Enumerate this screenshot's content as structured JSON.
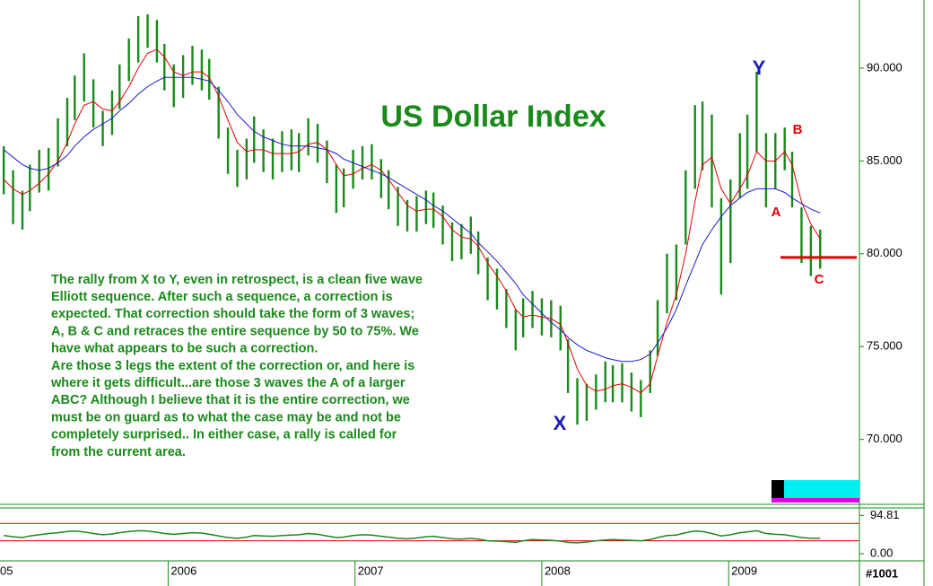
{
  "chart_data": {
    "type": "hilo",
    "title": "US Dollar Index",
    "color": "#1a8a1a",
    "x": [
      2005.12,
      2005.17,
      2005.22,
      2005.26,
      2005.31,
      2005.36,
      2005.41,
      2005.46,
      2005.5,
      2005.55,
      2005.6,
      2005.65,
      2005.7,
      2005.74,
      2005.79,
      2005.84,
      2005.89,
      2005.94,
      2005.98,
      2006.03,
      2006.08,
      2006.13,
      2006.18,
      2006.22,
      2006.27,
      2006.32,
      2006.37,
      2006.42,
      2006.46,
      2006.51,
      2006.56,
      2006.61,
      2006.66,
      2006.7,
      2006.75,
      2006.8,
      2006.85,
      2006.9,
      2006.94,
      2006.99,
      2007.04,
      2007.09,
      2007.14,
      2007.18,
      2007.23,
      2007.28,
      2007.33,
      2007.38,
      2007.42,
      2007.47,
      2007.52,
      2007.57,
      2007.62,
      2007.66,
      2007.71,
      2007.76,
      2007.81,
      2007.86,
      2007.9,
      2007.95,
      2008.0,
      2008.05,
      2008.1,
      2008.14,
      2008.19,
      2008.24,
      2008.29,
      2008.34,
      2008.38,
      2008.43,
      2008.48,
      2008.53,
      2008.58,
      2008.62,
      2008.67,
      2008.72,
      2008.77,
      2008.82,
      2008.86,
      2008.91,
      2008.96,
      2009.01,
      2009.06,
      2009.1,
      2009.15,
      2009.2,
      2009.25,
      2009.3,
      2009.34,
      2009.39,
      2009.44,
      2009.49
    ],
    "high": [
      85.8,
      84.5,
      83.4,
      84.8,
      85.6,
      85.7,
      87.3,
      88.4,
      89.6,
      90.8,
      89.4,
      87.7,
      88.8,
      90.2,
      91.6,
      92.8,
      92.9,
      92.6,
      91.3,
      90.2,
      90.7,
      91.2,
      91,
      90.5,
      89,
      86.8,
      85.6,
      86.2,
      87.4,
      86.7,
      86.2,
      86.6,
      86.7,
      86.5,
      87.3,
      87,
      86.1,
      84.8,
      84.6,
      85.6,
      85.8,
      85.9,
      85.1,
      84.5,
      83.6,
      82.9,
      83.1,
      83.4,
      83.3,
      82.6,
      81.7,
      81.6,
      82,
      81.2,
      79.8,
      79.2,
      78.1,
      77,
      77.6,
      78,
      77.6,
      77.5,
      77.2,
      75.4,
      73.3,
      73,
      73.5,
      74.2,
      74,
      74.1,
      73.6,
      73.2,
      74.8,
      77.5,
      80,
      80.5,
      84.5,
      88,
      88.2,
      87.5,
      83,
      84,
      86.5,
      87.5,
      89.8,
      86.5,
      86.5,
      86.8,
      85.5,
      82.5,
      81.5,
      81.3
    ],
    "low": [
      83.2,
      81.6,
      81.3,
      82.3,
      83.3,
      83.4,
      84.7,
      85.8,
      87.2,
      88.2,
      86.8,
      85.8,
      86.4,
      87.8,
      89.3,
      90.3,
      91.1,
      90.3,
      88.8,
      87.9,
      88.4,
      89.1,
      88.8,
      88.3,
      86.2,
      84.3,
      83.6,
      84,
      84.9,
      84.4,
      84,
      84.4,
      84.5,
      84.4,
      85.3,
      84.9,
      83.8,
      82.2,
      82.5,
      83.5,
      84,
      84,
      83,
      82.4,
      81.5,
      81.2,
      81.2,
      81.6,
      81.4,
      80.5,
      79.6,
      79.7,
      80,
      78.9,
      77.5,
      77,
      76,
      74.8,
      75.5,
      76,
      75.6,
      75.5,
      74.8,
      72.5,
      70.8,
      71,
      71.6,
      72,
      72,
      72,
      71.5,
      71.2,
      72.5,
      74.5,
      76.8,
      77.5,
      80.5,
      83.5,
      84.5,
      82.5,
      77.8,
      79.5,
      83,
      83.5,
      85.5,
      82.5,
      83.5,
      84.5,
      82.5,
      79.5,
      78.8,
      79.2
    ],
    "lines": [
      {
        "color": "#e00000",
        "values": [
          84,
          83.5,
          83.2,
          83.4,
          83.8,
          84.3,
          85,
          86,
          87,
          88,
          88.2,
          87.8,
          87.7,
          88.2,
          89,
          90,
          90.8,
          91,
          90.6,
          89.8,
          89.6,
          89.8,
          89.8,
          89.5,
          88.5,
          87.2,
          86,
          85.5,
          85.6,
          85.6,
          85.4,
          85.4,
          85.4,
          85.5,
          85.9,
          86,
          85.6,
          84.8,
          84.2,
          84.3,
          84.6,
          84.8,
          84.5,
          84,
          83.3,
          82.6,
          82.3,
          82.4,
          82.4,
          82,
          81.3,
          80.9,
          80.8,
          80.4,
          79.5,
          78.8,
          78,
          77,
          76.6,
          76.7,
          76.6,
          76.5,
          76.2,
          75.2,
          73.8,
          72.9,
          72.6,
          72.7,
          72.9,
          73,
          72.8,
          72.5,
          73,
          74.5,
          76.3,
          77.8,
          80,
          82.8,
          84.8,
          85.2,
          83.5,
          82.7,
          83.5,
          84.2,
          85.5,
          85,
          85,
          85.5,
          84.8,
          82.8,
          81.6,
          80.8
        ]
      },
      {
        "color": "#1c1cc8",
        "values": [
          85.6,
          85.2,
          84.8,
          84.6,
          84.5,
          84.6,
          84.9,
          85.3,
          85.8,
          86.3,
          86.7,
          87,
          87.3,
          87.7,
          88.1,
          88.6,
          89,
          89.3,
          89.5,
          89.5,
          89.5,
          89.5,
          89.4,
          89.3,
          88.8,
          88.2,
          87.5,
          87,
          86.6,
          86.3,
          86.1,
          85.9,
          85.8,
          85.8,
          85.8,
          85.7,
          85.6,
          85.4,
          85.1,
          84.9,
          84.7,
          84.5,
          84.3,
          84.1,
          83.8,
          83.5,
          83.2,
          82.9,
          82.6,
          82.3,
          81.9,
          81.5,
          81.1,
          80.6,
          80.1,
          79.6,
          79,
          78.4,
          77.8,
          77.3,
          76.8,
          76.3,
          75.9,
          75.5,
          75.1,
          74.8,
          74.6,
          74.4,
          74.3,
          74.2,
          74.2,
          74.3,
          74.6,
          75.2,
          76,
          77,
          78.3,
          79.5,
          80.5,
          81.3,
          82,
          82.6,
          83,
          83.3,
          83.5,
          83.5,
          83.5,
          83.3,
          83,
          82.7,
          82.4,
          82.2
        ]
      }
    ],
    "hline": {
      "value": 79.8,
      "color": "#e00000"
    },
    "xlim": [
      2005.1,
      2009.7
    ],
    "xticks": [
      {
        "value": 2005,
        "label": "05"
      },
      2006,
      2007,
      2008,
      2009
    ],
    "ylim": [
      66.6,
      93.67
    ],
    "yticks": [
      {
        "value": 70,
        "label": "70.000"
      },
      {
        "value": 75,
        "label": "75.000"
      },
      {
        "value": 80,
        "label": "80.000"
      },
      {
        "value": 85,
        "label": "85.000"
      },
      {
        "value": 90,
        "label": "90.000"
      }
    ],
    "annotations": [
      {
        "text": "X",
        "color": "#1a1ab4"
      },
      {
        "text": "Y",
        "color": "#1a1ab4"
      },
      {
        "text": "A",
        "color": "#e00000"
      },
      {
        "text": "B",
        "color": "#e00000"
      },
      {
        "text": "C",
        "color": "#e00000"
      }
    ],
    "note_lines": [
      "The rally from X to Y, even in retrospect, is a clean five wave",
      "Elliott sequence. After such a sequence, a correction is",
      "expected. That correction should take the form of 3 waves;",
      "A, B & C and retraces the entire sequence by 50 to 75%. We",
      "have what appears to be such a correction.",
      "Are those 3 legs the extent of the correction or, and here is",
      "where it gets difficult...are those 3 waves the A of a larger",
      "ABC? Although I believe that it is the entire correction, we",
      "must be on guard as to what the case may be and not be",
      "completely surprised..  In either case, a rally is called for",
      "from the current area."
    ],
    "indicator": {
      "color": "#1a8a1a",
      "ylim": [
        0,
        100
      ],
      "yticks": [
        {
          "value": 94.81,
          "label": "94.81"
        },
        {
          "value": 0,
          "label": "0.00"
        }
      ],
      "levels": [
        75,
        32
      ],
      "values": [
        45,
        42,
        40,
        44,
        47,
        50,
        52,
        55,
        56,
        54,
        50,
        47,
        49,
        52,
        55,
        57,
        56,
        53,
        50,
        48,
        50,
        52,
        51,
        48,
        44,
        40,
        38,
        41,
        45,
        44,
        43,
        45,
        46,
        47,
        50,
        48,
        44,
        40,
        41,
        45,
        47,
        46,
        43,
        41,
        38,
        37,
        39,
        42,
        43,
        40,
        37,
        36,
        38,
        36,
        32,
        31,
        30,
        28,
        32,
        35,
        34,
        33,
        31,
        28,
        27,
        29,
        32,
        34,
        35,
        34,
        33,
        32,
        35,
        40,
        45,
        46,
        52,
        56,
        55,
        50,
        44,
        47,
        52,
        54,
        57,
        50,
        48,
        47,
        44,
        40,
        38,
        38
      ]
    },
    "chart_id": "#1001"
  }
}
